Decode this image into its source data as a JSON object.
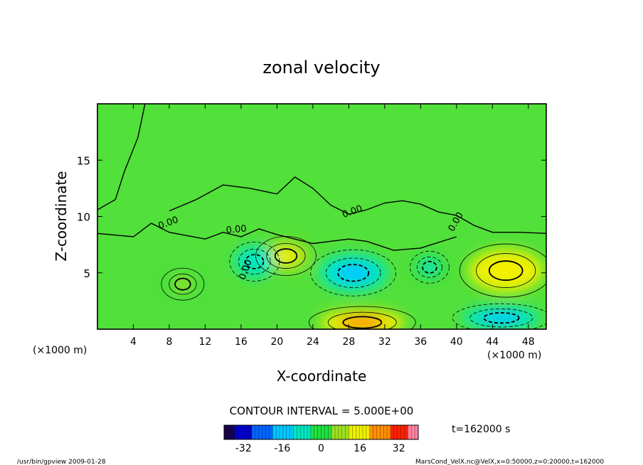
{
  "chart_data": {
    "type": "heatmap",
    "title": "zonal velocity",
    "xlabel": "X-coordinate",
    "ylabel": "Z-coordinate",
    "x_unit": "(×1000 m)",
    "y_unit": "(×1000 m)",
    "xlim": [
      0,
      50
    ],
    "ylim": [
      0,
      20
    ],
    "x_ticks": [
      4,
      8,
      12,
      16,
      20,
      24,
      28,
      32,
      36,
      40,
      44,
      48
    ],
    "y_ticks": [
      5,
      10,
      15
    ],
    "contour_interval_label": "CONTOUR INTERVAL = 5.000E+00",
    "contour_labels": [
      "0.00",
      "0.00",
      "0.00",
      "0.00",
      "0.00"
    ],
    "time_label": "t=162000 s",
    "colorbar": {
      "min": -40,
      "max": 40,
      "ticks": [
        -32,
        -16,
        0,
        16,
        32
      ],
      "colors": [
        "#1a0050",
        "#0000c8",
        "#0064ff",
        "#00c8ff",
        "#00e8c0",
        "#20e040",
        "#a0e020",
        "#f0f000",
        "#ff9000",
        "#ff2000",
        "#ff80a0"
      ]
    },
    "features": [
      {
        "x": 21,
        "z": 6.5,
        "value": 10,
        "sign": "positive"
      },
      {
        "x": 28.5,
        "z": 5.0,
        "value": -12,
        "sign": "negative"
      },
      {
        "x": 45.5,
        "z": 5.2,
        "value": 14,
        "sign": "positive"
      },
      {
        "x": 29.5,
        "z": 0.6,
        "value": 18,
        "sign": "positive"
      },
      {
        "x": 45.0,
        "z": 1.0,
        "value": -10,
        "sign": "negative"
      },
      {
        "x": 9.5,
        "z": 4.0,
        "value": 4,
        "sign": "positive"
      },
      {
        "x": 17.5,
        "z": 6.0,
        "value": -6,
        "sign": "negative"
      },
      {
        "x": 37.0,
        "z": 5.5,
        "value": -4,
        "sign": "negative"
      }
    ],
    "background_value": 0
  },
  "footer": {
    "left": "/usr/bin/gpview  2009-01-28",
    "right": "MarsCond_VelX.nc@VelX,x=0:50000,z=0:20000,t=162000"
  }
}
